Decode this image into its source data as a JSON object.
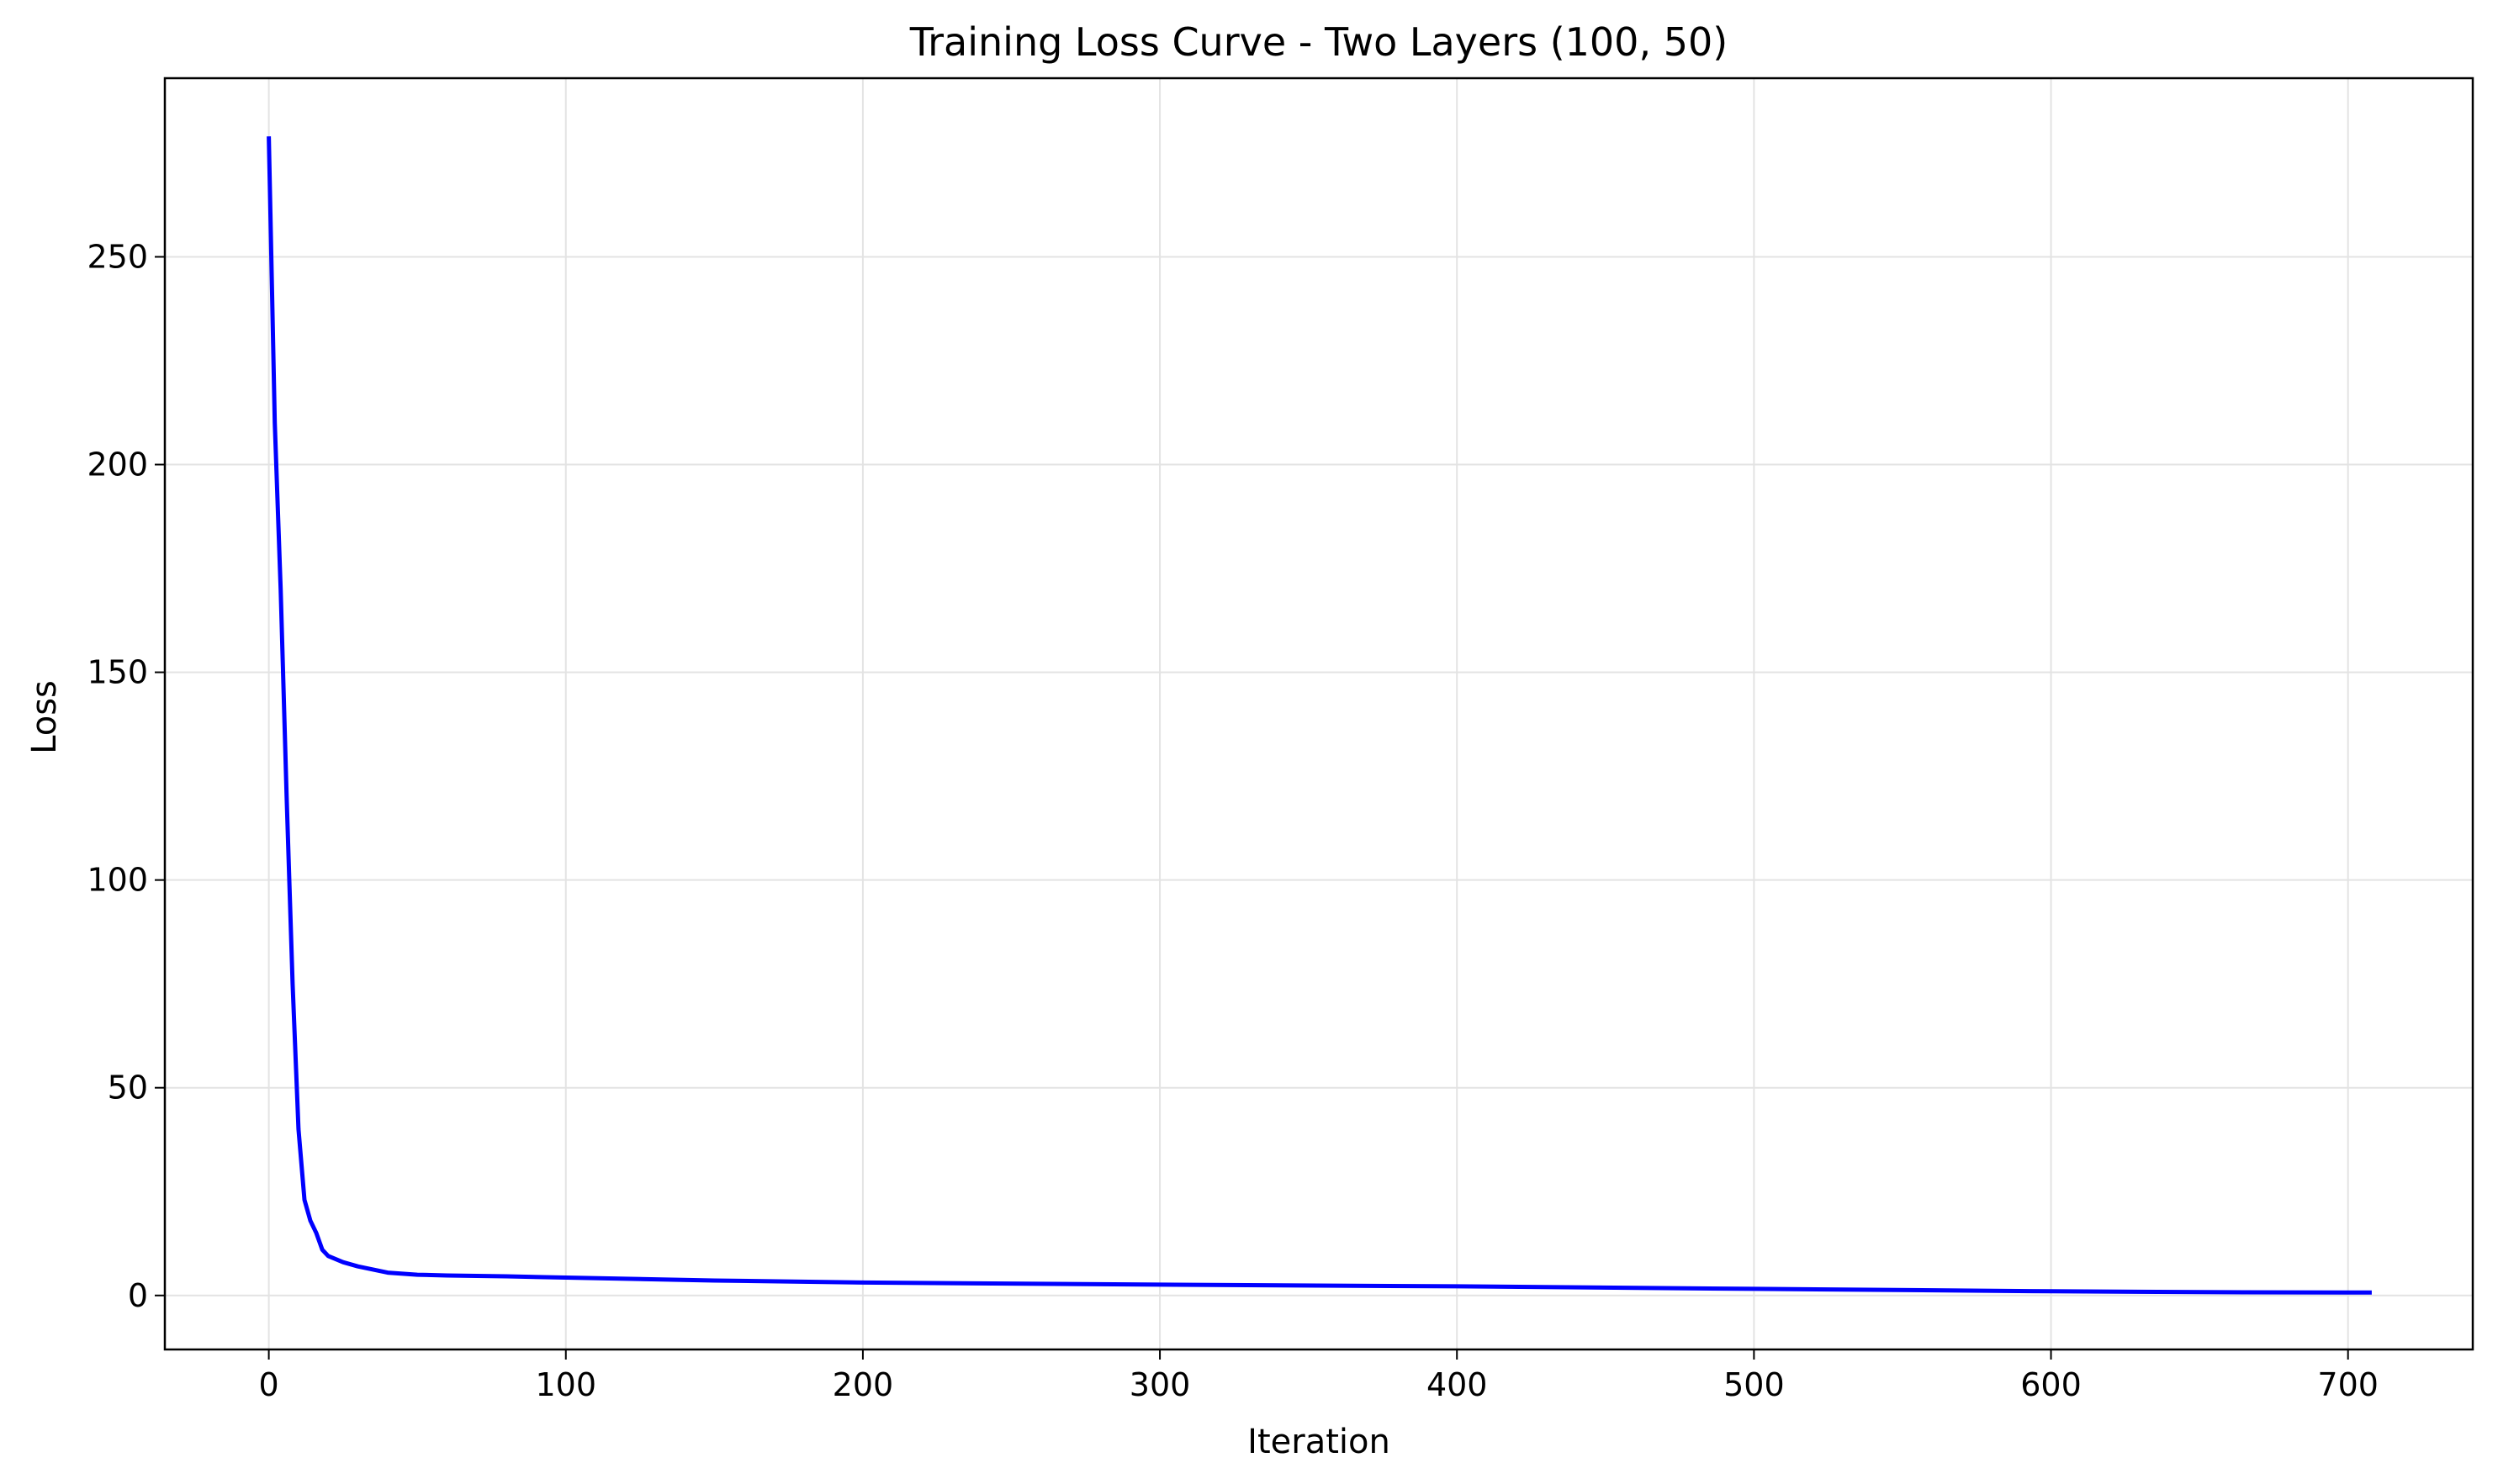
{
  "chart_data": {
    "type": "line",
    "title": "Training Loss Curve - Two Layers (100, 50)",
    "xlabel": "Iteration",
    "ylabel": "Loss",
    "xlim": [
      -35,
      742
    ],
    "ylim": [
      -13,
      293
    ],
    "xticks": [
      0,
      100,
      200,
      300,
      400,
      500,
      600,
      700
    ],
    "yticks": [
      0,
      50,
      100,
      150,
      200,
      250
    ],
    "grid": true,
    "legend": "none",
    "series": [
      {
        "color": "#0000ff",
        "x": [
          0,
          2,
          4,
          6,
          8,
          10,
          12,
          14,
          16,
          18,
          20,
          25,
          30,
          40,
          50,
          60,
          80,
          100,
          150,
          200,
          300,
          400,
          500,
          600,
          650,
          700,
          708
        ],
        "y": [
          279,
          210,
          170,
          120,
          75,
          40,
          23,
          18,
          15,
          11,
          9.5,
          8,
          7,
          5.5,
          5,
          4.8,
          4.6,
          4.3,
          3.6,
          3.1,
          2.6,
          2.2,
          1.6,
          1.0,
          0.8,
          0.7,
          0.7
        ]
      }
    ]
  }
}
